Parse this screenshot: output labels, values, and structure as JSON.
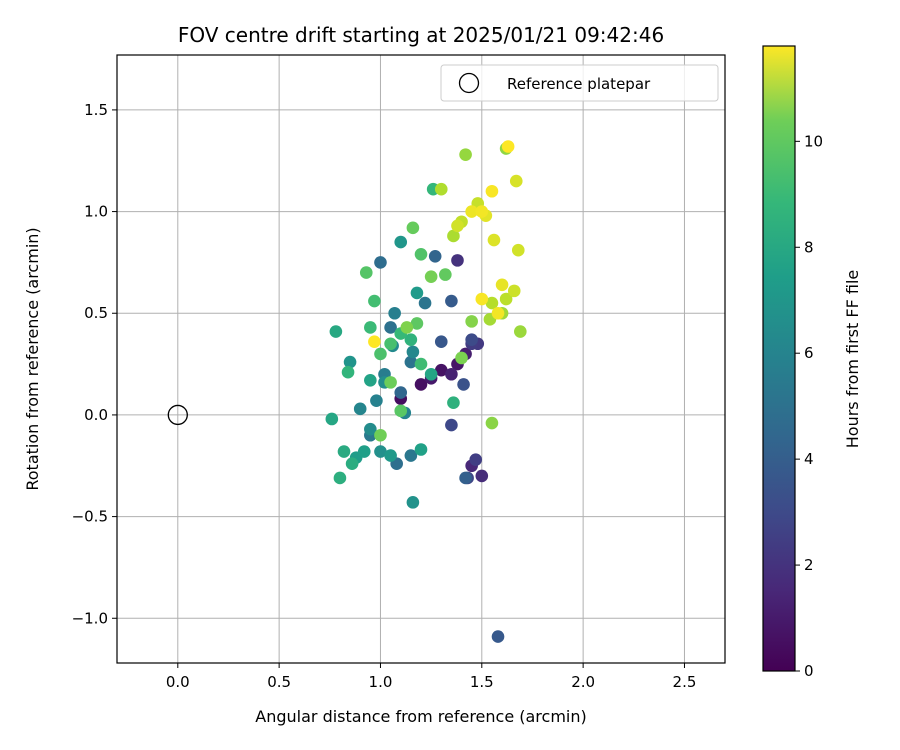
{
  "chart_data": {
    "type": "scatter",
    "title": "FOV centre drift starting at 2025/01/21 09:42:46",
    "xlabel": "Angular distance from reference (arcmin)",
    "ylabel": "Rotation from reference (arcmin)",
    "xlim": [
      -0.3,
      2.7
    ],
    "ylim": [
      -1.22,
      1.77
    ],
    "xticks": [
      0.0,
      0.5,
      1.0,
      1.5,
      2.0,
      2.5
    ],
    "xtick_labels": [
      "0.0",
      "0.5",
      "1.0",
      "1.5",
      "2.0",
      "2.5"
    ],
    "yticks": [
      -1.0,
      -0.5,
      0.0,
      0.5,
      1.0,
      1.5
    ],
    "ytick_labels": [
      "−1.0",
      "−0.5",
      "0.0",
      "0.5",
      "1.0",
      "1.5"
    ],
    "grid": true,
    "legend": {
      "position": "top-right",
      "entries": [
        "Reference platepar"
      ]
    },
    "reference_point": {
      "x": 0.0,
      "y": 0.0
    },
    "colorbar": {
      "label": "Hours from first FF file",
      "range": [
        0,
        11.8
      ],
      "ticks": [
        0,
        2,
        4,
        6,
        8,
        10
      ],
      "tick_labels": [
        "0",
        "2",
        "4",
        "6",
        "8",
        "10"
      ],
      "colormap": "viridis"
    },
    "points": [
      [
        1.1,
        0.08,
        0.4
      ],
      [
        1.2,
        0.15,
        0.5
      ],
      [
        1.3,
        0.22,
        0.6
      ],
      [
        1.38,
        0.25,
        0.7
      ],
      [
        1.25,
        0.18,
        0.8
      ],
      [
        1.42,
        0.3,
        1.0
      ],
      [
        1.35,
        0.2,
        1.1
      ],
      [
        1.45,
        -0.25,
        1.3
      ],
      [
        1.5,
        -0.3,
        1.5
      ],
      [
        1.38,
        0.76,
        1.7
      ],
      [
        1.48,
        0.35,
        2.0
      ],
      [
        1.45,
        0.35,
        2.1
      ],
      [
        1.47,
        -0.22,
        2.2
      ],
      [
        1.43,
        -0.31,
        2.5
      ],
      [
        1.35,
        -0.05,
        2.6
      ],
      [
        1.45,
        0.37,
        2.7
      ],
      [
        1.41,
        0.15,
        3.0
      ],
      [
        1.3,
        0.36,
        3.2
      ],
      [
        1.58,
        -1.09,
        3.3
      ],
      [
        1.35,
        0.56,
        3.4
      ],
      [
        1.42,
        -0.31,
        3.6
      ],
      [
        1.27,
        0.78,
        3.8
      ],
      [
        1.1,
        0.11,
        3.9
      ],
      [
        1.0,
        0.75,
        4.2
      ],
      [
        1.08,
        -0.24,
        4.3
      ],
      [
        1.05,
        0.43,
        4.4
      ],
      [
        1.15,
        0.26,
        4.5
      ],
      [
        1.22,
        0.55,
        4.6
      ],
      [
        1.15,
        -0.2,
        4.7
      ],
      [
        0.95,
        -0.1,
        4.8
      ],
      [
        1.02,
        0.2,
        5.0
      ],
      [
        1.07,
        0.5,
        5.1
      ],
      [
        0.98,
        0.07,
        5.2
      ],
      [
        1.12,
        0.01,
        5.3
      ],
      [
        0.9,
        0.03,
        5.4
      ],
      [
        1.16,
        0.31,
        5.5
      ],
      [
        1.06,
        0.34,
        5.6
      ],
      [
        0.95,
        -0.07,
        5.7
      ],
      [
        1.02,
        0.16,
        5.8
      ],
      [
        1.0,
        -0.18,
        5.9
      ],
      [
        1.16,
        -0.43,
        6.0
      ],
      [
        0.85,
        0.26,
        6.1
      ],
      [
        1.1,
        0.85,
        6.2
      ],
      [
        1.05,
        -0.2,
        6.3
      ],
      [
        1.18,
        0.6,
        6.4
      ],
      [
        0.88,
        -0.21,
        6.5
      ],
      [
        0.92,
        -0.18,
        6.6
      ],
      [
        1.2,
        -0.17,
        6.7
      ],
      [
        0.95,
        0.17,
        6.8
      ],
      [
        1.25,
        0.2,
        6.9
      ],
      [
        0.76,
        -0.02,
        7.0
      ],
      [
        0.78,
        0.41,
        7.1
      ],
      [
        0.82,
        -0.18,
        7.2
      ],
      [
        0.86,
        -0.24,
        7.3
      ],
      [
        0.8,
        -0.31,
        7.4
      ],
      [
        1.36,
        0.06,
        7.5
      ],
      [
        1.15,
        0.37,
        7.6
      ],
      [
        0.84,
        0.21,
        7.7
      ],
      [
        1.26,
        1.11,
        7.8
      ],
      [
        1.1,
        0.4,
        7.9
      ],
      [
        0.95,
        0.43,
        8.0
      ],
      [
        1.2,
        0.25,
        8.1
      ],
      [
        0.97,
        0.56,
        8.2
      ],
      [
        1.05,
        0.35,
        8.3
      ],
      [
        1.0,
        0.3,
        8.4
      ],
      [
        1.2,
        0.79,
        8.5
      ],
      [
        0.93,
        0.7,
        8.6
      ],
      [
        1.1,
        0.02,
        8.7
      ],
      [
        1.18,
        0.45,
        8.8
      ],
      [
        1.32,
        0.69,
        8.9
      ],
      [
        1.16,
        0.92,
        9.0
      ],
      [
        1.05,
        0.16,
        9.1
      ],
      [
        1.0,
        -0.1,
        9.2
      ],
      [
        1.25,
        0.68,
        9.3
      ],
      [
        1.4,
        0.28,
        9.4
      ],
      [
        1.13,
        0.43,
        9.5
      ],
      [
        1.45,
        0.46,
        9.6
      ],
      [
        1.55,
        -0.04,
        9.7
      ],
      [
        1.62,
        1.31,
        9.8
      ],
      [
        1.42,
        1.28,
        9.9
      ],
      [
        1.69,
        0.41,
        10.0
      ],
      [
        1.6,
        0.5,
        10.1
      ],
      [
        1.54,
        0.47,
        10.2
      ],
      [
        1.36,
        0.88,
        10.3
      ],
      [
        1.3,
        1.11,
        10.4
      ],
      [
        1.55,
        0.55,
        10.5
      ],
      [
        1.62,
        0.57,
        10.6
      ],
      [
        1.4,
        0.95,
        10.7
      ],
      [
        1.48,
        1.04,
        10.8
      ],
      [
        1.66,
        0.61,
        10.9
      ],
      [
        1.68,
        0.81,
        11.0
      ],
      [
        1.67,
        1.15,
        11.1
      ],
      [
        1.56,
        0.86,
        11.2
      ],
      [
        1.52,
        0.98,
        11.3
      ],
      [
        1.6,
        0.64,
        11.4
      ],
      [
        1.45,
        1.0,
        11.5
      ],
      [
        1.58,
        0.5,
        11.6
      ],
      [
        1.5,
        0.57,
        11.7
      ],
      [
        1.63,
        1.32,
        11.8
      ],
      [
        0.97,
        0.36,
        11.8
      ],
      [
        1.55,
        1.1,
        11.7
      ],
      [
        1.5,
        1.0,
        11.6
      ],
      [
        1.38,
        0.93,
        11.0
      ]
    ]
  }
}
